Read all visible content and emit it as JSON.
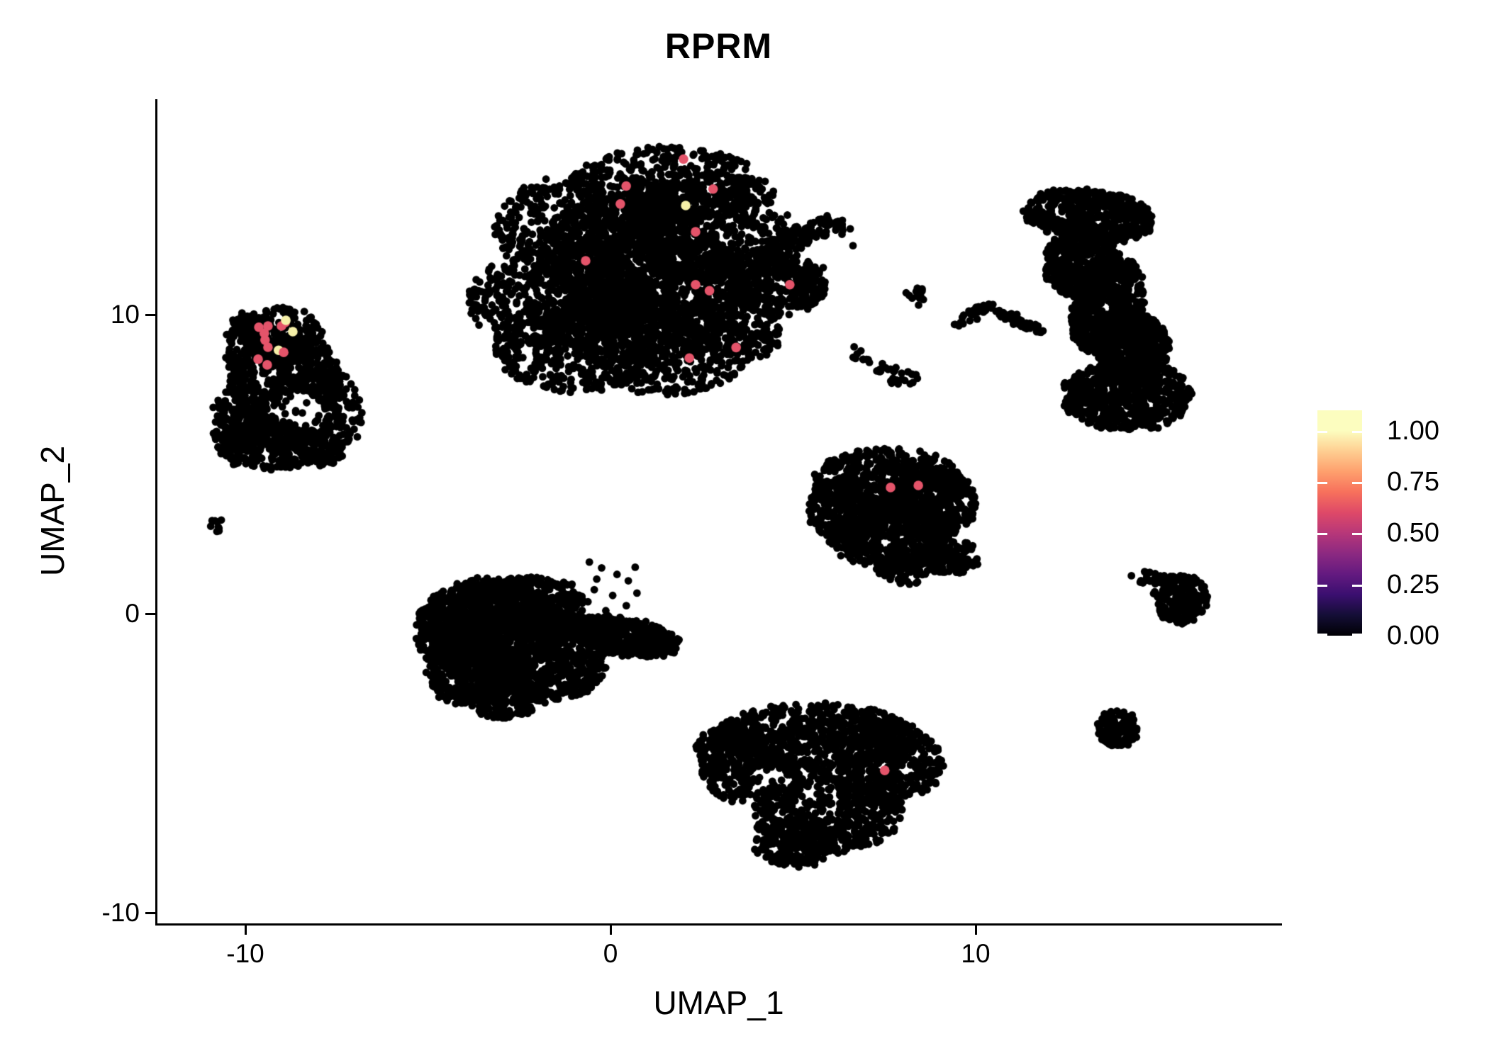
{
  "title": "RPRM",
  "axes": {
    "x": {
      "label": "UMAP_1",
      "ticks": [
        {
          "v": -10,
          "label": "-10"
        },
        {
          "v": 0,
          "label": "0"
        },
        {
          "v": 10,
          "label": "10"
        }
      ]
    },
    "y": {
      "label": "UMAP_2",
      "ticks": [
        {
          "v": 10,
          "label": "10"
        },
        {
          "v": 0,
          "label": "0"
        },
        {
          "v": -10,
          "label": "-10"
        }
      ]
    }
  },
  "legend": {
    "bar_max": 1.1,
    "ticks": [
      {
        "v": 1.0,
        "label": "1.00"
      },
      {
        "v": 0.75,
        "label": "0.75"
      },
      {
        "v": 0.5,
        "label": "0.50"
      },
      {
        "v": 0.25,
        "label": "0.25"
      },
      {
        "v": 0.0,
        "label": "0.00"
      }
    ],
    "colormap": "magma",
    "stops": [
      [
        0,
        "#000004"
      ],
      [
        0.1,
        "#140e36"
      ],
      [
        0.2,
        "#3b0f70"
      ],
      [
        0.3,
        "#641a80"
      ],
      [
        0.4,
        "#8c2981"
      ],
      [
        0.5,
        "#b73779"
      ],
      [
        0.6,
        "#de4968"
      ],
      [
        0.7,
        "#f7705c"
      ],
      [
        0.8,
        "#fe9f6d"
      ],
      [
        0.9,
        "#fece91"
      ],
      [
        1.0,
        "#fcfdbf"
      ],
      [
        1.1,
        "#fcfdbf"
      ]
    ]
  },
  "chart_data": {
    "type": "scatter",
    "title": "RPRM",
    "xlabel": "UMAP_1",
    "ylabel": "UMAP_2",
    "xlim": [
      -12.4,
      18.3
    ],
    "ylim": [
      -10.3,
      17.2
    ],
    "x_ticks": [
      -10,
      0,
      10
    ],
    "y_ticks": [
      10,
      0,
      -10
    ],
    "grid": false,
    "legend_position": "right",
    "point_color_default": "#000000",
    "point_radius_px": 5.4,
    "expressing_point_radius_px": 6.8,
    "clusters": [
      {
        "name": "central-large",
        "count": 4300,
        "components": [
          [
            1.6,
            14.35,
            2.7,
            1.25,
            0
          ],
          [
            -0.5,
            12.9,
            2.7,
            1.85,
            0
          ],
          [
            2.7,
            12.9,
            2.25,
            1.9,
            0
          ],
          [
            -1.3,
            10.5,
            2.6,
            1.7,
            0
          ],
          [
            1.3,
            10.7,
            2.5,
            1.9,
            0
          ],
          [
            -0.9,
            8.95,
            2.35,
            1.55,
            0
          ],
          [
            1.6,
            8.8,
            2.3,
            1.5,
            0
          ],
          [
            3.3,
            9.6,
            1.5,
            1.25,
            0
          ],
          [
            0.6,
            11.9,
            2.6,
            2.2,
            0
          ]
        ]
      },
      {
        "name": "central-arm",
        "count": 430,
        "components": [
          [
            4.55,
            11.0,
            1.35,
            1.05,
            0
          ],
          [
            5.2,
            12.62,
            1.4,
            0.34,
            27
          ],
          [
            6.38,
            12.78,
            0.2,
            0.16,
            0
          ]
        ]
      },
      {
        "name": "left",
        "count": 1600,
        "components": [
          [
            -9.55,
            7.9,
            0.85,
            2.25,
            12
          ],
          [
            -9.0,
            9.3,
            1.1,
            0.95,
            0
          ],
          [
            -7.85,
            6.6,
            1.05,
            1.65,
            0
          ],
          [
            -9.3,
            5.65,
            1.5,
            0.85,
            0
          ],
          [
            -10.15,
            6.4,
            0.78,
            1.3,
            0
          ],
          [
            -8.35,
            8.0,
            0.95,
            1.25,
            0
          ]
        ],
        "holes": [
          [
            -8.55,
            6.85,
            0.62,
            0.1
          ]
        ]
      },
      {
        "name": "left-satellite",
        "count": 9,
        "components": [
          [
            -10.72,
            2.88,
            0.24,
            0.3,
            0
          ]
        ]
      },
      {
        "name": "right-crescent",
        "count": 2700,
        "components": [
          [
            13.1,
            13.3,
            1.78,
            0.88,
            -8
          ],
          [
            12.9,
            11.7,
            1.05,
            1.15,
            0
          ],
          [
            13.6,
            10.3,
            0.95,
            1.65,
            -15
          ],
          [
            14.3,
            8.9,
            1.0,
            1.15,
            0
          ],
          [
            14.15,
            7.3,
            1.78,
            1.18,
            0
          ]
        ]
      },
      {
        "name": "mid-small-blob",
        "count": 12,
        "components": [
          [
            8.45,
            10.62,
            0.36,
            0.3,
            0
          ]
        ]
      },
      {
        "name": "mid-chevron",
        "count": 70,
        "components": [
          [
            9.95,
            10.0,
            0.66,
            0.17,
            35
          ],
          [
            11.15,
            9.78,
            0.82,
            0.17,
            -28
          ]
        ]
      },
      {
        "name": "mid-diagonal-clumps",
        "count": 40,
        "components": [
          [
            6.95,
            8.7,
            0.38,
            0.3,
            0
          ],
          [
            7.45,
            8.25,
            0.22,
            0.28,
            0
          ],
          [
            7.95,
            7.95,
            0.46,
            0.32,
            -20
          ]
        ]
      },
      {
        "name": "middle-triangle",
        "count": 1750,
        "components": [
          [
            7.6,
            4.4,
            2.05,
            1.15,
            0
          ],
          [
            6.5,
            3.5,
            1.1,
            1.1,
            0
          ],
          [
            8.8,
            3.7,
            1.25,
            1.2,
            0
          ],
          [
            7.7,
            2.5,
            1.7,
            0.95,
            0
          ],
          [
            9.35,
            1.9,
            0.8,
            0.6,
            0
          ],
          [
            8.1,
            1.55,
            0.85,
            0.55,
            0
          ]
        ]
      },
      {
        "name": "bottom-left",
        "count": 2700,
        "components": [
          [
            -3.3,
            -0.3,
            1.9,
            1.5,
            0
          ],
          [
            -1.9,
            -1.4,
            1.85,
            1.6,
            0
          ],
          [
            -3.8,
            -1.9,
            1.3,
            1.2,
            0
          ],
          [
            -2.3,
            0.35,
            1.65,
            0.9,
            0
          ],
          [
            -4.35,
            -0.6,
            1.0,
            1.3,
            0
          ],
          [
            -2.9,
            -2.6,
            1.1,
            0.95,
            0
          ]
        ]
      },
      {
        "name": "bottom-left-wing",
        "count": 520,
        "components": [
          [
            0.3,
            -0.75,
            1.62,
            0.6,
            -12
          ]
        ]
      },
      {
        "name": "bottom-center",
        "count": 2500,
        "components": [
          [
            5.6,
            -4.1,
            2.7,
            1.1,
            0
          ],
          [
            7.35,
            -5.0,
            1.78,
            1.38,
            0
          ],
          [
            4.1,
            -5.2,
            1.6,
            1.25,
            0
          ],
          [
            6.0,
            -6.7,
            2.0,
            1.28,
            0
          ],
          [
            5.0,
            -7.6,
            1.15,
            0.9,
            0
          ],
          [
            3.3,
            -4.6,
            0.95,
            0.95,
            0
          ]
        ],
        "sparse": [
          {
            "x": [
              3.1,
              6.3
            ],
            "y": [
              -6.9,
              -4.4
            ],
            "keep": 0.55
          }
        ]
      },
      {
        "name": "right-arrow",
        "count": 240,
        "components": [
          [
            14.75,
            1.2,
            0.62,
            0.2,
            -15
          ],
          [
            15.62,
            0.52,
            0.75,
            0.82,
            0
          ]
        ]
      },
      {
        "name": "right-small-round",
        "count": 130,
        "components": [
          [
            13.9,
            -3.85,
            0.55,
            0.63,
            0
          ]
        ]
      }
    ],
    "singles": [
      [
        3.6,
        13.3
      ],
      [
        3.9,
        12.9
      ],
      [
        4.25,
        12.5
      ],
      [
        3.5,
        12.15
      ],
      [
        4.65,
        12.2
      ],
      [
        4.0,
        11.85
      ],
      [
        6.6,
        12.3
      ],
      [
        5.85,
        11.6
      ],
      [
        -0.55,
        1.75
      ],
      [
        -0.2,
        1.5
      ],
      [
        0.15,
        1.3
      ],
      [
        0.5,
        1.05
      ],
      [
        -0.35,
        1.1
      ],
      [
        0.75,
        0.7
      ],
      [
        0.1,
        0.65
      ],
      [
        -0.6,
        0.4
      ],
      [
        0.45,
        0.25
      ],
      [
        -0.15,
        0.1
      ],
      [
        0.7,
        1.6
      ],
      [
        -0.45,
        0.75
      ]
    ],
    "expressing_cells": [
      {
        "x": 2.0,
        "y": 15.2,
        "value_est": 0.6,
        "color": "#e4546a"
      },
      {
        "x": 0.43,
        "y": 14.3,
        "value_est": 0.6,
        "color": "#e4546a"
      },
      {
        "x": 2.81,
        "y": 14.2,
        "value_est": 0.6,
        "color": "#e4546a"
      },
      {
        "x": 0.27,
        "y": 13.7,
        "value_est": 0.6,
        "color": "#e4546a"
      },
      {
        "x": 2.06,
        "y": 13.65,
        "value_est": 1.0,
        "color": "#f6f0a8"
      },
      {
        "x": 2.33,
        "y": 12.77,
        "value_est": 0.6,
        "color": "#e4546a"
      },
      {
        "x": -0.68,
        "y": 11.8,
        "value_est": 0.6,
        "color": "#e4546a"
      },
      {
        "x": 2.33,
        "y": 11.0,
        "value_est": 0.6,
        "color": "#e4546a"
      },
      {
        "x": 2.71,
        "y": 10.8,
        "value_est": 0.6,
        "color": "#e4546a"
      },
      {
        "x": 4.91,
        "y": 11.0,
        "value_est": 0.6,
        "color": "#e4546a"
      },
      {
        "x": 3.44,
        "y": 8.9,
        "value_est": 0.6,
        "color": "#e4546a"
      },
      {
        "x": 2.16,
        "y": 8.55,
        "value_est": 0.6,
        "color": "#e4546a"
      },
      {
        "x": -9.63,
        "y": 9.58,
        "value_est": 0.6,
        "color": "#e4546a"
      },
      {
        "x": -9.38,
        "y": 9.62,
        "value_est": 0.6,
        "color": "#e4546a"
      },
      {
        "x": -9.01,
        "y": 9.62,
        "value_est": 0.6,
        "color": "#e4546a"
      },
      {
        "x": -8.91,
        "y": 9.74,
        "value_est": 0.6,
        "color": "#e4546a"
      },
      {
        "x": -8.89,
        "y": 9.81,
        "value_est": 1.0,
        "color": "#f6f0a8"
      },
      {
        "x": -8.7,
        "y": 9.43,
        "value_est": 1.0,
        "color": "#f6f0a8"
      },
      {
        "x": -9.48,
        "y": 9.38,
        "value_est": 0.6,
        "color": "#e4546a"
      },
      {
        "x": -9.46,
        "y": 9.15,
        "value_est": 0.6,
        "color": "#e4546a"
      },
      {
        "x": -9.38,
        "y": 8.91,
        "value_est": 0.6,
        "color": "#e4546a"
      },
      {
        "x": -9.09,
        "y": 8.81,
        "value_est": 1.0,
        "color": "#f6f0a8"
      },
      {
        "x": -8.95,
        "y": 8.74,
        "value_est": 0.6,
        "color": "#e4546a"
      },
      {
        "x": -9.65,
        "y": 8.51,
        "value_est": 0.6,
        "color": "#e4546a"
      },
      {
        "x": -9.4,
        "y": 8.32,
        "value_est": 0.6,
        "color": "#e4546a"
      },
      {
        "x": 7.67,
        "y": 4.22,
        "value_est": 0.6,
        "color": "#e4546a"
      },
      {
        "x": 8.43,
        "y": 4.29,
        "value_est": 0.6,
        "color": "#e4546a"
      },
      {
        "x": 7.51,
        "y": -5.24,
        "value_est": 0.6,
        "color": "#e4546a"
      }
    ]
  }
}
